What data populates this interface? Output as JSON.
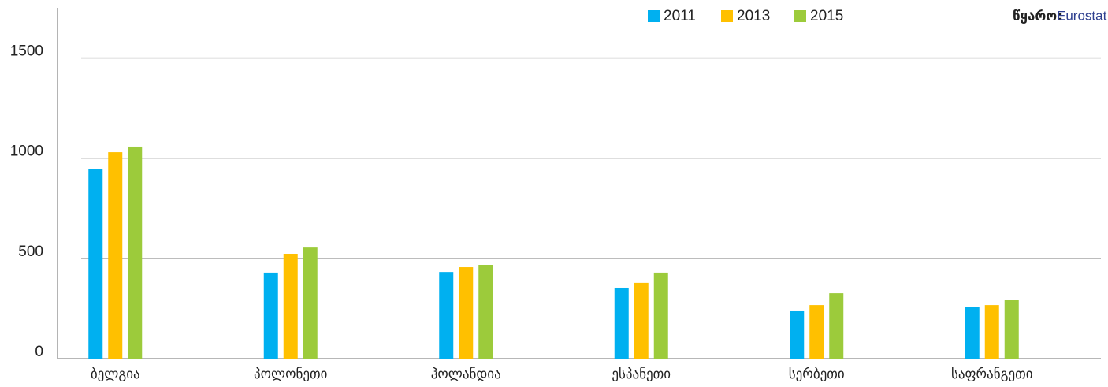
{
  "chart_data": {
    "type": "bar",
    "categories": [
      "ბელგია",
      "პოლონეთი",
      "ჰოლანდია",
      "ესპანეთი",
      "სერბეთი",
      "საფრანგეთი"
    ],
    "series": [
      {
        "name": "2011",
        "color": "#00b0f0",
        "values": [
          944,
          429,
          432,
          354,
          240,
          256
        ]
      },
      {
        "name": "2013",
        "color": "#ffc000",
        "values": [
          1030,
          523,
          456,
          378,
          267,
          267
        ]
      },
      {
        "name": "2015",
        "color": "#9ccb3b",
        "values": [
          1058,
          554,
          468,
          429,
          326,
          291
        ]
      }
    ],
    "ylim": [
      0,
      1750
    ],
    "yticks": [
      0,
      500,
      1000,
      1500
    ],
    "grid": true,
    "source_label": "წყარო:",
    "source": "Eurostat"
  }
}
